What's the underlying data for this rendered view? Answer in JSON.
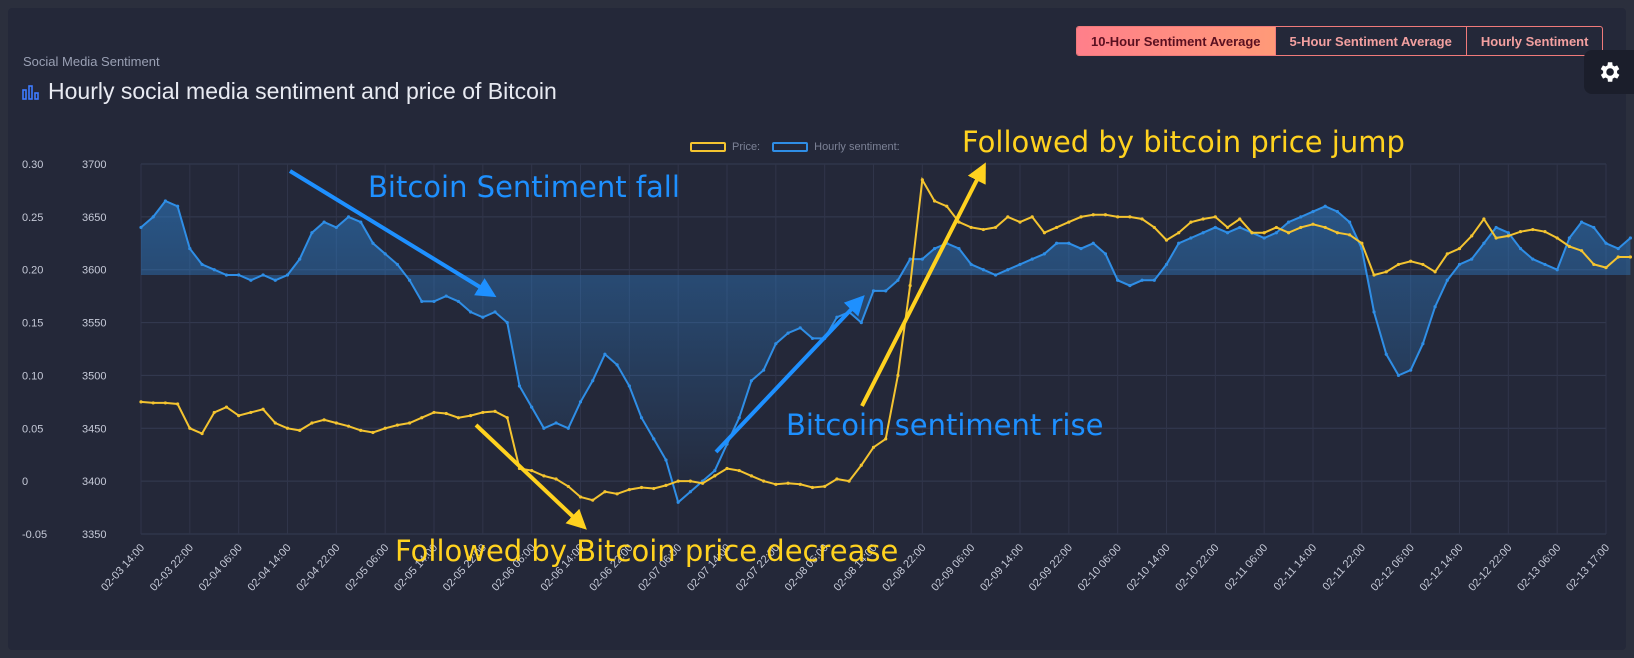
{
  "header": {
    "eyebrow": "Social Media Sentiment",
    "title": "Hourly social media sentiment and price of Bitcoin"
  },
  "tabs": [
    {
      "label": "10-Hour Sentiment Average",
      "active": true
    },
    {
      "label": "5-Hour Sentiment Average",
      "active": false
    },
    {
      "label": "Hourly Sentiment",
      "active": false
    }
  ],
  "settings": {
    "icon": "gear-icon"
  },
  "colors": {
    "price": "#f4c430",
    "sentiment": "#2f8ee6",
    "sentiment_annotation": "#1e90ff",
    "price_annotation": "#ffd21f",
    "active_tab": "#ff8a80"
  },
  "annotations": {
    "sentiment_fall": "Bitcoin Sentiment fall",
    "price_decrease": "Followed by Bitcoin price decrease",
    "sentiment_rise": "Bitcoin sentiment rise",
    "price_jump": "Followed by bitcoin price jump"
  },
  "chart_data": {
    "type": "line",
    "legend": [
      "Price:",
      "Hourly sentiment:"
    ],
    "legend_position": "top-center",
    "grid": true,
    "x_ticks": [
      "02-03 14:00",
      "02-03 22:00",
      "02-04 06:00",
      "02-04 14:00",
      "02-04 22:00",
      "02-05 06:00",
      "02-05 14:00",
      "02-05 22:00",
      "02-06 06:00",
      "02-06 14:00",
      "02-06 22:00",
      "02-07 06:00",
      "02-07 14:00",
      "02-07 22:00",
      "02-08 06:00",
      "02-08 14:00",
      "02-08 22:00",
      "02-09 06:00",
      "02-09 14:00",
      "02-09 22:00",
      "02-10 06:00",
      "02-10 14:00",
      "02-10 22:00",
      "02-11 06:00",
      "02-11 14:00",
      "02-11 22:00",
      "02-12 06:00",
      "02-12 14:00",
      "02-12 22:00",
      "02-13 06:00",
      "02-13 17:00"
    ],
    "y_left": {
      "ticks": [
        "0.30",
        "0.25",
        "0.20",
        "0.15",
        "0.10",
        "0.05",
        "0",
        "-0.05"
      ],
      "range": [
        -0.05,
        0.3
      ]
    },
    "y_right": {
      "ticks": [
        "3700",
        "3650",
        "3600",
        "3550",
        "3500",
        "3450",
        "3400",
        "3350"
      ],
      "range": [
        3350,
        3700
      ]
    },
    "series": [
      {
        "name": "Hourly sentiment:",
        "axis": "left",
        "points": [
          [
            0,
            0.24
          ],
          [
            0.25,
            0.25
          ],
          [
            0.5,
            0.265
          ],
          [
            0.75,
            0.26
          ],
          [
            1,
            0.22
          ],
          [
            1.25,
            0.205
          ],
          [
            1.5,
            0.2
          ],
          [
            1.75,
            0.195
          ],
          [
            2,
            0.195
          ],
          [
            2.25,
            0.19
          ],
          [
            2.5,
            0.195
          ],
          [
            2.75,
            0.19
          ],
          [
            3,
            0.195
          ],
          [
            3.25,
            0.21
          ],
          [
            3.5,
            0.235
          ],
          [
            3.75,
            0.245
          ],
          [
            4,
            0.24
          ],
          [
            4.25,
            0.25
          ],
          [
            4.5,
            0.245
          ],
          [
            4.75,
            0.225
          ],
          [
            5,
            0.215
          ],
          [
            5.25,
            0.205
          ],
          [
            5.5,
            0.19
          ],
          [
            5.75,
            0.17
          ],
          [
            6,
            0.17
          ],
          [
            6.25,
            0.175
          ],
          [
            6.5,
            0.17
          ],
          [
            6.75,
            0.16
          ],
          [
            7,
            0.155
          ],
          [
            7.25,
            0.16
          ],
          [
            7.5,
            0.15
          ],
          [
            7.75,
            0.09
          ],
          [
            8,
            0.07
          ],
          [
            8.25,
            0.05
          ],
          [
            8.5,
            0.055
          ],
          [
            8.75,
            0.05
          ],
          [
            9,
            0.075
          ],
          [
            9.25,
            0.095
          ],
          [
            9.5,
            0.12
          ],
          [
            9.75,
            0.11
          ],
          [
            10,
            0.09
          ],
          [
            10.25,
            0.06
          ],
          [
            10.5,
            0.04
          ],
          [
            10.75,
            0.02
          ],
          [
            11,
            -0.02
          ],
          [
            11.25,
            -0.01
          ],
          [
            11.5,
            0.0
          ],
          [
            11.75,
            0.01
          ],
          [
            12,
            0.035
          ],
          [
            12.25,
            0.06
          ],
          [
            12.5,
            0.095
          ],
          [
            12.75,
            0.105
          ],
          [
            13,
            0.13
          ],
          [
            13.25,
            0.14
          ],
          [
            13.5,
            0.145
          ],
          [
            13.75,
            0.135
          ],
          [
            14,
            0.135
          ],
          [
            14.25,
            0.155
          ],
          [
            14.5,
            0.16
          ],
          [
            14.75,
            0.15
          ],
          [
            15,
            0.18
          ],
          [
            15.25,
            0.18
          ],
          [
            15.5,
            0.19
          ],
          [
            15.75,
            0.21
          ],
          [
            16,
            0.21
          ],
          [
            16.25,
            0.22
          ],
          [
            16.5,
            0.225
          ],
          [
            16.75,
            0.22
          ],
          [
            17,
            0.205
          ],
          [
            17.25,
            0.2
          ],
          [
            17.5,
            0.195
          ],
          [
            17.75,
            0.2
          ],
          [
            18,
            0.205
          ],
          [
            18.25,
            0.21
          ],
          [
            18.5,
            0.215
          ],
          [
            18.75,
            0.225
          ],
          [
            19,
            0.225
          ],
          [
            19.25,
            0.22
          ],
          [
            19.5,
            0.225
          ],
          [
            19.75,
            0.215
          ],
          [
            20,
            0.19
          ],
          [
            20.25,
            0.185
          ],
          [
            20.5,
            0.19
          ],
          [
            20.75,
            0.19
          ],
          [
            21,
            0.205
          ],
          [
            21.25,
            0.225
          ],
          [
            21.5,
            0.23
          ],
          [
            21.75,
            0.235
          ],
          [
            22,
            0.24
          ],
          [
            22.25,
            0.235
          ],
          [
            22.5,
            0.24
          ],
          [
            22.75,
            0.235
          ],
          [
            23,
            0.23
          ],
          [
            23.25,
            0.235
          ],
          [
            23.5,
            0.245
          ],
          [
            23.75,
            0.25
          ],
          [
            24,
            0.255
          ],
          [
            24.25,
            0.26
          ],
          [
            24.5,
            0.255
          ],
          [
            24.75,
            0.245
          ],
          [
            25,
            0.22
          ],
          [
            25.25,
            0.16
          ],
          [
            25.5,
            0.12
          ],
          [
            25.75,
            0.1
          ],
          [
            26,
            0.105
          ],
          [
            26.25,
            0.13
          ],
          [
            26.5,
            0.165
          ],
          [
            26.75,
            0.19
          ],
          [
            27,
            0.205
          ],
          [
            27.25,
            0.21
          ],
          [
            27.5,
            0.225
          ],
          [
            27.75,
            0.24
          ],
          [
            28,
            0.235
          ],
          [
            28.25,
            0.22
          ],
          [
            28.5,
            0.21
          ],
          [
            28.75,
            0.205
          ],
          [
            29,
            0.2
          ],
          [
            29.25,
            0.23
          ],
          [
            29.5,
            0.245
          ],
          [
            29.75,
            0.24
          ],
          [
            30,
            0.225
          ],
          [
            30.25,
            0.22
          ],
          [
            30.5,
            0.23
          ]
        ]
      },
      {
        "name": "Price:",
        "axis": "right",
        "points": [
          [
            0,
            3475
          ],
          [
            0.25,
            3474
          ],
          [
            0.5,
            3474
          ],
          [
            0.75,
            3473
          ],
          [
            1,
            3450
          ],
          [
            1.25,
            3445
          ],
          [
            1.5,
            3465
          ],
          [
            1.75,
            3470
          ],
          [
            2,
            3462
          ],
          [
            2.25,
            3465
          ],
          [
            2.5,
            3468
          ],
          [
            2.75,
            3455
          ],
          [
            3,
            3450
          ],
          [
            3.25,
            3448
          ],
          [
            3.5,
            3455
          ],
          [
            3.75,
            3458
          ],
          [
            4,
            3455
          ],
          [
            4.25,
            3452
          ],
          [
            4.5,
            3448
          ],
          [
            4.75,
            3446
          ],
          [
            5,
            3450
          ],
          [
            5.25,
            3453
          ],
          [
            5.5,
            3455
          ],
          [
            5.75,
            3460
          ],
          [
            6,
            3465
          ],
          [
            6.25,
            3464
          ],
          [
            6.5,
            3460
          ],
          [
            6.75,
            3462
          ],
          [
            7,
            3465
          ],
          [
            7.25,
            3466
          ],
          [
            7.5,
            3460
          ],
          [
            7.75,
            3412
          ],
          [
            8,
            3410
          ],
          [
            8.25,
            3405
          ],
          [
            8.5,
            3402
          ],
          [
            8.75,
            3395
          ],
          [
            9,
            3385
          ],
          [
            9.25,
            3382
          ],
          [
            9.5,
            3390
          ],
          [
            9.75,
            3388
          ],
          [
            10,
            3392
          ],
          [
            10.25,
            3394
          ],
          [
            10.5,
            3393
          ],
          [
            10.75,
            3396
          ],
          [
            11,
            3400
          ],
          [
            11.25,
            3400
          ],
          [
            11.5,
            3398
          ],
          [
            11.75,
            3405
          ],
          [
            12,
            3412
          ],
          [
            12.25,
            3410
          ],
          [
            12.5,
            3405
          ],
          [
            12.75,
            3400
          ],
          [
            13,
            3397
          ],
          [
            13.25,
            3398
          ],
          [
            13.5,
            3397
          ],
          [
            13.75,
            3394
          ],
          [
            14,
            3395
          ],
          [
            14.25,
            3402
          ],
          [
            14.5,
            3400
          ],
          [
            14.75,
            3415
          ],
          [
            15,
            3432
          ],
          [
            15.25,
            3440
          ],
          [
            15.5,
            3500
          ],
          [
            15.75,
            3585
          ],
          [
            16,
            3685
          ],
          [
            16.25,
            3665
          ],
          [
            16.5,
            3660
          ],
          [
            16.75,
            3645
          ],
          [
            17,
            3640
          ],
          [
            17.25,
            3638
          ],
          [
            17.5,
            3640
          ],
          [
            17.75,
            3650
          ],
          [
            18,
            3645
          ],
          [
            18.25,
            3650
          ],
          [
            18.5,
            3635
          ],
          [
            18.75,
            3640
          ],
          [
            19,
            3645
          ],
          [
            19.25,
            3650
          ],
          [
            19.5,
            3652
          ],
          [
            19.75,
            3652
          ],
          [
            20,
            3650
          ],
          [
            20.25,
            3650
          ],
          [
            20.5,
            3648
          ],
          [
            20.75,
            3640
          ],
          [
            21,
            3628
          ],
          [
            21.25,
            3635
          ],
          [
            21.5,
            3645
          ],
          [
            21.75,
            3648
          ],
          [
            22,
            3650
          ],
          [
            22.25,
            3640
          ],
          [
            22.5,
            3648
          ],
          [
            22.75,
            3635
          ],
          [
            23,
            3635
          ],
          [
            23.25,
            3640
          ],
          [
            23.5,
            3635
          ],
          [
            23.75,
            3640
          ],
          [
            24,
            3643
          ],
          [
            24.25,
            3640
          ],
          [
            24.5,
            3635
          ],
          [
            24.75,
            3633
          ],
          [
            25,
            3625
          ],
          [
            25.25,
            3595
          ],
          [
            25.5,
            3598
          ],
          [
            25.75,
            3605
          ],
          [
            26,
            3608
          ],
          [
            26.25,
            3605
          ],
          [
            26.5,
            3598
          ],
          [
            26.75,
            3615
          ],
          [
            27,
            3620
          ],
          [
            27.25,
            3632
          ],
          [
            27.5,
            3648
          ],
          [
            27.75,
            3630
          ],
          [
            28,
            3632
          ],
          [
            28.25,
            3636
          ],
          [
            28.5,
            3638
          ],
          [
            28.75,
            3636
          ],
          [
            29,
            3630
          ],
          [
            29.25,
            3622
          ],
          [
            29.5,
            3618
          ],
          [
            29.75,
            3605
          ],
          [
            30,
            3602
          ],
          [
            30.25,
            3612
          ],
          [
            30.5,
            3612
          ]
        ]
      }
    ]
  }
}
